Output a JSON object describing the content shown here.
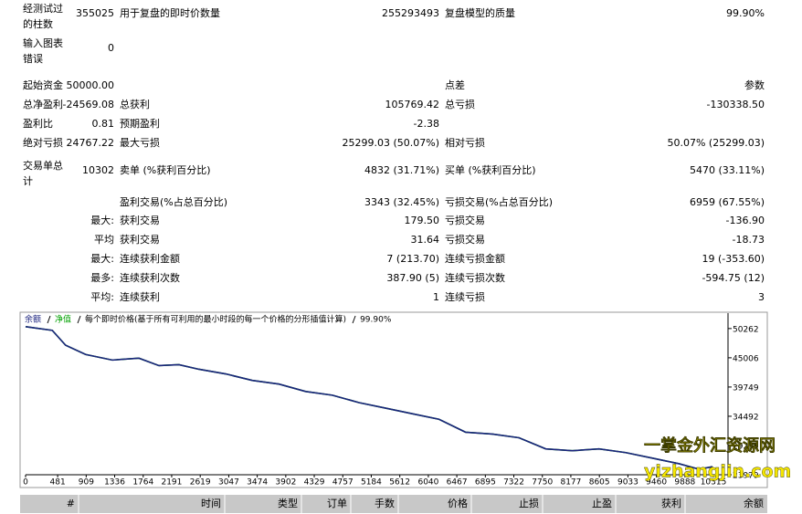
{
  "stats": [
    {
      "c1": {
        "label": "经测试过的柱数",
        "value": "355025"
      },
      "c2": {
        "label": "用于复盘的即时价数量",
        "value": "255293493"
      },
      "c3": {
        "label": "复盘模型的质量",
        "value": "99.90%"
      }
    },
    {
      "c1": {
        "label": "输入图表错误",
        "value": "0"
      }
    },
    {
      "c1": {
        "label": "起始资金",
        "value": "50000.00"
      },
      "c3": {
        "label": "点差",
        "value": "参数"
      }
    },
    {
      "c1": {
        "label": "总净盈利",
        "value": "-24569.08"
      },
      "c2": {
        "label": "总获利",
        "value": "105769.42"
      },
      "c3": {
        "label": "总亏损",
        "value": "-130338.50"
      }
    },
    {
      "c1": {
        "label": "盈利比",
        "value": "0.81"
      },
      "c2": {
        "label": "预期盈利",
        "value": "-2.38"
      }
    },
    {
      "c1": {
        "label": "绝对亏损",
        "value": "24767.22"
      },
      "c2": {
        "label": "最大亏损",
        "value": "25299.03 (50.07%)"
      },
      "c3": {
        "label": "相对亏损",
        "value": "50.07% (25299.03)"
      }
    },
    {
      "c1": {
        "label": "交易单总计",
        "value": "10302"
      },
      "c2": {
        "label": "卖单 (%获利百分比)",
        "value": "4832 (31.71%)"
      },
      "c3": {
        "label": "买单 (%获利百分比)",
        "value": "5470 (33.11%)"
      }
    },
    {
      "c2": {
        "label": "盈利交易(%占总百分比)",
        "value": "3343 (32.45%)"
      },
      "c3": {
        "label": "亏损交易(%占总百分比)",
        "value": "6959 (67.55%)"
      }
    },
    {
      "prefix": "最大:",
      "c2": {
        "label": "获利交易",
        "value": "179.50"
      },
      "c3": {
        "label": "亏损交易",
        "value": "-136.90"
      }
    },
    {
      "prefix": "平均",
      "c2": {
        "label": "获利交易",
        "value": "31.64"
      },
      "c3": {
        "label": "亏损交易",
        "value": "-18.73"
      }
    },
    {
      "prefix": "最大:",
      "c2": {
        "label": "连续获利金额",
        "value": "7 (213.70)"
      },
      "c3": {
        "label": "连续亏损金额",
        "value": "19 (-353.60)"
      }
    },
    {
      "prefix": "最多:",
      "c2": {
        "label": "连续获利次数",
        "value": "387.90 (5)"
      },
      "c3": {
        "label": "连续亏损次数",
        "value": "-594.75 (12)"
      }
    },
    {
      "prefix": "平均:",
      "c2": {
        "label": "连续获利",
        "value": "1"
      },
      "c3": {
        "label": "连续亏损",
        "value": "3"
      }
    }
  ],
  "chart_data": {
    "type": "line",
    "title": "每个即时价格(基于所有可利用的最小时段的每一个价格的分形插值计算)",
    "subtitle": "99.90%",
    "x": [
      0,
      400,
      600,
      900,
      1300,
      1700,
      2000,
      2300,
      2600,
      3000,
      3400,
      3800,
      4200,
      4600,
      5000,
      5400,
      5800,
      6200,
      6600,
      7000,
      7400,
      7800,
      8200,
      8600,
      9000,
      9400,
      9800,
      10100,
      10302
    ],
    "series": [
      {
        "name": "余额",
        "color": "#1b237e",
        "values": [
          50600,
          49930,
          47265,
          45600,
          44600,
          44930,
          43600,
          43770,
          42940,
          42110,
          40940,
          40280,
          38950,
          38280,
          36950,
          35950,
          34950,
          33950,
          31620,
          31290,
          30630,
          28630,
          28300,
          28630,
          27960,
          26960,
          25960,
          24970,
          25431
        ]
      },
      {
        "name": "净值",
        "color": "#00a000",
        "values": [
          50600,
          49930,
          47265,
          45600,
          44600,
          44930,
          43600,
          43770,
          42940,
          42110,
          40940,
          40280,
          38950,
          38280,
          36950,
          35950,
          34950,
          33950,
          31620,
          31290,
          30630,
          28630,
          28300,
          28630,
          27960,
          26960,
          25960,
          24970,
          25431
        ]
      }
    ],
    "xlim": [
      0,
      10534
    ],
    "xticks": [
      0,
      481,
      909,
      1336,
      1764,
      2191,
      2619,
      3047,
      3474,
      3902,
      4329,
      4757,
      5184,
      5612,
      6040,
      6467,
      6895,
      7322,
      7750,
      8177,
      8605,
      9033,
      9460,
      9888,
      10315
    ],
    "ylim": [
      23979,
      53030
    ],
    "yticks": [
      23979,
      29235,
      34492,
      39749,
      45006,
      50262
    ],
    "watermark": [
      "一掌金外汇资源网",
      "yizhangjin.com"
    ]
  },
  "table_header": [
    "#",
    "时间",
    "类型",
    "订单",
    "手数",
    "价格",
    "止损",
    "止盈",
    "获利",
    "余额"
  ]
}
